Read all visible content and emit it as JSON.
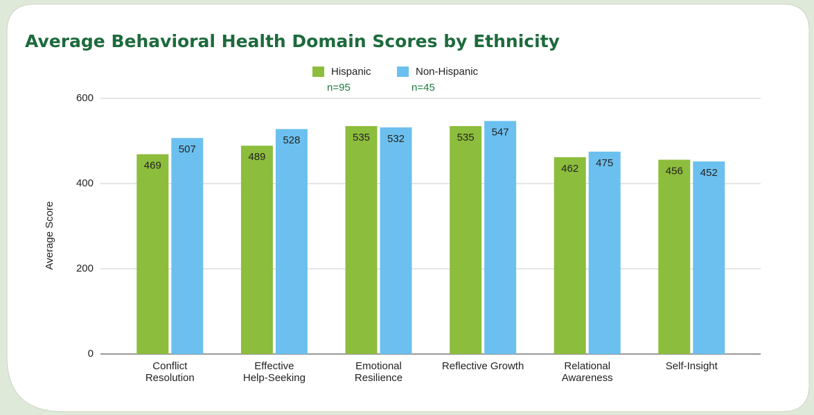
{
  "chart_data": {
    "type": "bar",
    "title": "Average Behavioral Health Domain Scores by Ethnicity",
    "y_label": "Average Score",
    "categories": [
      "Conflict\nResolution",
      "Effective\nHelp-Seeking",
      "Emotional\nResilience",
      "Reflective Growth",
      "Relational\nAwareness",
      "Self-Insight"
    ],
    "series": [
      {
        "name": "Hispanic",
        "note": "n=95",
        "color": "#8dbd3c",
        "values": [
          469,
          489,
          535,
          535,
          462,
          456
        ]
      },
      {
        "name": "Non-Hispanic",
        "note": "n=45",
        "color": "#6cc0ef",
        "values": [
          507,
          528,
          532,
          547,
          475,
          452
        ]
      }
    ],
    "ylim": [
      0,
      600
    ],
    "yticks": [
      0,
      200,
      400,
      600
    ],
    "grid": true,
    "legend": "top"
  }
}
